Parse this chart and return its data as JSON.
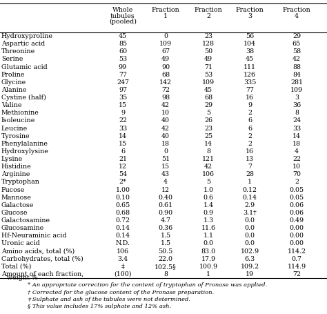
{
  "columns": [
    "Whole\ntubules\n(pooled)",
    "Fraction\n1",
    "Fraction\n2",
    "Fraction\n3",
    "Fraction\n4"
  ],
  "rows": [
    [
      "Hydroxyproline",
      "45",
      "0",
      "23",
      "56",
      "29"
    ],
    [
      "Aspartic acid",
      "85",
      "109",
      "128",
      "104",
      "65"
    ],
    [
      "Threonine",
      "60",
      "67",
      "50",
      "38",
      "58"
    ],
    [
      "Serine",
      "53",
      "49",
      "49",
      "45",
      "42"
    ],
    [
      "Glutamic acid",
      "99",
      "90",
      "71",
      "111",
      "88"
    ],
    [
      "Proline",
      "77",
      "68",
      "53",
      "126",
      "84"
    ],
    [
      "Glycine",
      "247",
      "142",
      "109",
      "335",
      "281"
    ],
    [
      "Alanine",
      "97",
      "72",
      "45",
      "77",
      "109"
    ],
    [
      "Cystine (half)",
      "35",
      "98",
      "68",
      "16",
      "3"
    ],
    [
      "Valine",
      "15",
      "42",
      "29",
      "9",
      "36"
    ],
    [
      "Methionine",
      "9",
      "10",
      "5",
      "2",
      "8"
    ],
    [
      "Isoleucine",
      "22",
      "40",
      "26",
      "6",
      "24"
    ],
    [
      "Leucine",
      "33",
      "42",
      "23",
      "6",
      "33"
    ],
    [
      "Tyrosine",
      "14",
      "40",
      "25",
      "2",
      "14"
    ],
    [
      "Phenylalanine",
      "15",
      "18",
      "14",
      "2",
      "18"
    ],
    [
      "Hydroxylysine",
      "6",
      "0",
      "8",
      "16",
      "4"
    ],
    [
      "Lysine",
      "21",
      "51",
      "121",
      "13",
      "22"
    ],
    [
      "Histidine",
      "12",
      "15",
      "42",
      "7",
      "10"
    ],
    [
      "Arginine",
      "54",
      "43",
      "106",
      "28",
      "70"
    ],
    [
      "Tryptophan",
      "2*",
      "4",
      "5",
      "1",
      "2"
    ],
    [
      "Fucose",
      "1.00",
      "12",
      "1.0",
      "0.12",
      "0.05"
    ],
    [
      "Mannose",
      "0.10",
      "0.40",
      "0.6",
      "0.14",
      "0.05"
    ],
    [
      "Galactose",
      "0.65",
      "0.61",
      "1.4",
      "2.9",
      "0.06"
    ],
    [
      "Glucose",
      "0.68",
      "0.90",
      "0.9",
      "3.1†",
      "0.06"
    ],
    [
      "Galactosamine",
      "0.72",
      "4.7",
      "1.3",
      "0.0",
      "0.49"
    ],
    [
      "Glucosamine",
      "0.14",
      "0.36",
      "11.6",
      "0.0",
      "0.00"
    ],
    [
      "Hf-Neuraminic acid",
      "0.14",
      "1.5",
      "1.1",
      "0.0",
      "0.00"
    ],
    [
      "Uronic acid",
      "N.D.",
      "1.5",
      "0.0",
      "0.0",
      "0.00"
    ],
    [
      "Amino acids, total (%)",
      "106",
      "50.5",
      "83.0",
      "102.9",
      "114.2"
    ],
    [
      "Carbohydrates, total (%)",
      "3.4",
      "22.0",
      "17.9",
      "6.3",
      "0.7"
    ],
    [
      "Total (%)",
      "‡",
      "102.5§",
      "100.9",
      "109.2",
      "114.9"
    ],
    [
      "Amount of each fraction,\nweight %",
      "(100)",
      "8",
      "1",
      "19",
      "72"
    ]
  ],
  "footnotes": [
    "* An appropriate correction for the content of tryptophan of Pronase was applied.",
    "† Corrected for the glucose content of the Pronase preparation.",
    "‡ Sulphate and ash of the tubules were not determined.",
    "§ This value includes 17% sulphate and 12% ash."
  ],
  "bg_color": "#ffffff",
  "text_color": "#000000",
  "font_size": 6.8,
  "footnote_font_size": 6.0
}
